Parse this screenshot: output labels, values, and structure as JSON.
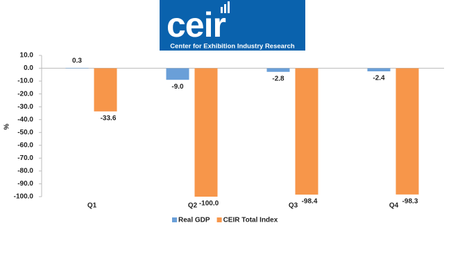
{
  "logo": {
    "name": "ceir",
    "tagline": "Center for Exhibition Industry Research"
  },
  "chart_data": {
    "type": "bar",
    "categories": [
      "Q1",
      "Q2",
      "Q3",
      "Q4"
    ],
    "series": [
      {
        "name": "Real GDP",
        "color": "#6a9fd8",
        "values": [
          0.3,
          -9.0,
          -2.8,
          -2.4
        ],
        "value_labels": [
          "0.3",
          "-9.0",
          "-2.8",
          "-2.4"
        ]
      },
      {
        "name": "CEIR Total Index",
        "color": "#f7964a",
        "values": [
          -33.6,
          -100.0,
          -98.4,
          -98.3
        ],
        "value_labels": [
          "-33.6",
          "-100.0",
          "-98.4",
          "-98.3"
        ]
      }
    ],
    "y_label": "%",
    "ylim": [
      -100,
      10
    ],
    "yticks": [
      {
        "value": 10,
        "label": "10.0"
      },
      {
        "value": 0,
        "label": "0.0"
      },
      {
        "value": -10,
        "label": "-10.0"
      },
      {
        "value": -20,
        "label": "-20.0"
      },
      {
        "value": -30,
        "label": "-30.0"
      },
      {
        "value": -40,
        "label": "-40.0"
      },
      {
        "value": -50,
        "label": "-50.0"
      },
      {
        "value": -60,
        "label": "-60.0"
      },
      {
        "value": -70,
        "label": "-70.0"
      },
      {
        "value": -80,
        "label": "-80.0"
      },
      {
        "value": -90,
        "label": "-90.0"
      },
      {
        "value": -100,
        "label": "-100.0"
      }
    ],
    "legend": "bottom"
  }
}
